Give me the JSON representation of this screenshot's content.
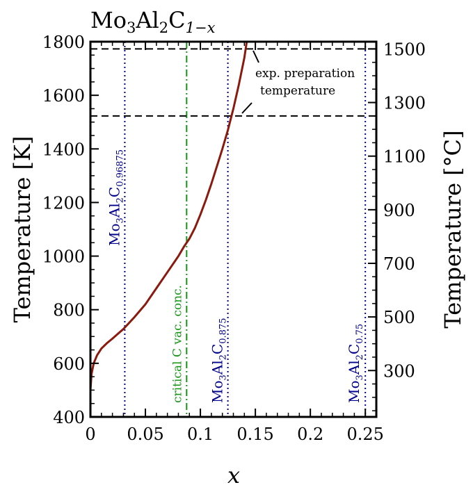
{
  "chart_data": {
    "type": "line",
    "title": {
      "main": "Mo",
      "s1": "3",
      "mid": "Al",
      "s2": "2",
      "c": "C",
      "s3": "1−x"
    },
    "xlabel": "x",
    "ylabel_left": "Temperature [K]",
    "ylabel_right": "Temperature [°C]",
    "xlim": [
      0,
      0.26
    ],
    "ylim": [
      400,
      1800
    ],
    "x_ticks": [
      {
        "v": 0,
        "label": "0"
      },
      {
        "v": 0.05,
        "label": "0.05"
      },
      {
        "v": 0.1,
        "label": "0.1"
      },
      {
        "v": 0.15,
        "label": "0.15"
      },
      {
        "v": 0.2,
        "label": "0.2"
      },
      {
        "v": 0.25,
        "label": "0.25"
      }
    ],
    "y_ticks_left": [
      {
        "v": 400,
        "label": "400"
      },
      {
        "v": 600,
        "label": "600"
      },
      {
        "v": 800,
        "label": "800"
      },
      {
        "v": 1000,
        "label": "1000"
      },
      {
        "v": 1200,
        "label": "1200"
      },
      {
        "v": 1400,
        "label": "1400"
      },
      {
        "v": 1600,
        "label": "1600"
      },
      {
        "v": 1800,
        "label": "1800"
      }
    ],
    "y_ticks_right": [
      {
        "v": 573,
        "label": "300"
      },
      {
        "v": 773,
        "label": "500"
      },
      {
        "v": 973,
        "label": "700"
      },
      {
        "v": 1173,
        "label": "900"
      },
      {
        "v": 1373,
        "label": "1100"
      },
      {
        "v": 1573,
        "label": "1300"
      },
      {
        "v": 1773,
        "label": "1500"
      }
    ],
    "series": [
      {
        "color": "#8b1a0e",
        "x": [
          0,
          0.001,
          0.003,
          0.006,
          0.01,
          0.015,
          0.02,
          0.025,
          0.03,
          0.04,
          0.05,
          0.06,
          0.07,
          0.08,
          0.085,
          0.09,
          0.095,
          0.1,
          0.105,
          0.11,
          0.115,
          0.12,
          0.125,
          0.13,
          0.135,
          0.14,
          0.1425
        ],
        "y": [
          500,
          560,
          600,
          630,
          655,
          675,
          692,
          710,
          728,
          772,
          820,
          880,
          940,
          1000,
          1035,
          1065,
          1105,
          1155,
          1210,
          1270,
          1335,
          1400,
          1470,
          1550,
          1640,
          1740,
          1810
        ]
      }
    ],
    "hlines": [
      {
        "y": 1773,
        "style": "dashed",
        "color": "#000000"
      },
      {
        "y": 1523,
        "style": "dashed",
        "color": "#000000"
      }
    ],
    "vlines": [
      {
        "x": 0.03125,
        "style": "dotted",
        "color": "#00008b",
        "label": {
          "base": "Mo",
          "s1": "3",
          "mid": "Al",
          "s2": "2",
          "c": "C",
          "s3": "0.96875"
        }
      },
      {
        "x": 0.0875,
        "style": "dashdot",
        "color": "#149614",
        "label": "critical C vac. conc."
      },
      {
        "x": 0.125,
        "style": "dotted",
        "color": "#00008b",
        "label": {
          "base": "Mo",
          "s1": "3",
          "mid": "Al",
          "s2": "2",
          "c": "C",
          "s3": "0.875"
        }
      },
      {
        "x": 0.25,
        "style": "dotted",
        "color": "#00008b",
        "label": {
          "base": "Mo",
          "s1": "3",
          "mid": "Al",
          "s2": "2",
          "c": "C",
          "s3": "0.75"
        }
      }
    ],
    "annotation": {
      "lines": [
        "exp. preparation",
        "temperature"
      ]
    },
    "grid": false,
    "legend": "none"
  }
}
